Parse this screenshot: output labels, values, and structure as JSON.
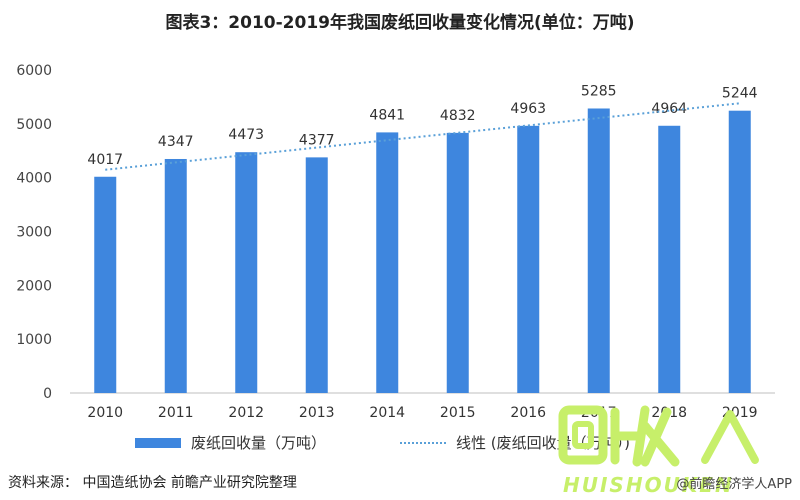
{
  "title": "图表3：2010-2019年我国废纸回收量变化情况(单位：万吨)",
  "legend": {
    "bar_label": "废纸回收量（万吨）",
    "trend_label": "线性 (废纸回收量（万吨）)"
  },
  "source": "资料来源： 中国造纸协会 前瞻产业研究院整理",
  "credit": "@前瞻经济学人APP",
  "logo": {
    "cn": "回收",
    "en": "HUISHOUKEN"
  },
  "colors": {
    "bar": "#3e86de",
    "trend": "#5aa0d8",
    "logo": "#c7ef6a"
  },
  "chart_data": {
    "type": "bar",
    "categories": [
      "2010",
      "2011",
      "2012",
      "2013",
      "2014",
      "2015",
      "2016",
      "2017",
      "2018",
      "2019"
    ],
    "values": [
      4017,
      4347,
      4473,
      4377,
      4841,
      4832,
      4963,
      5285,
      4964,
      5244
    ],
    "y_ticks": [
      0,
      1000,
      2000,
      3000,
      4000,
      5000,
      6000
    ],
    "ylim": [
      0,
      6000
    ],
    "trendline": {
      "type": "linear",
      "from": 4147,
      "to": 5382
    },
    "grid": false,
    "legend_position": "bottom"
  }
}
